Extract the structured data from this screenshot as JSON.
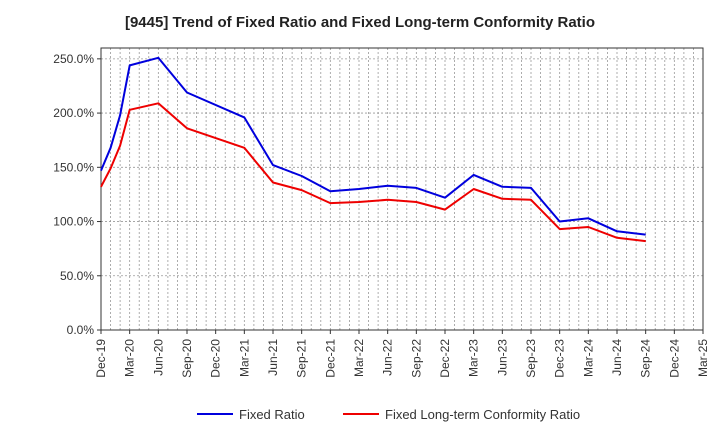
{
  "chart_data": {
    "type": "line",
    "title": "[9445]  Trend of Fixed Ratio and Fixed Long-term Conformity Ratio",
    "xlabel": "",
    "ylabel": "",
    "ylim": [
      0,
      260
    ],
    "y_ticks": [
      0,
      50,
      100,
      150,
      200,
      250
    ],
    "y_tick_labels": [
      "0.0%",
      "50.0%",
      "100.0%",
      "150.0%",
      "200.0%",
      "250.0%"
    ],
    "x_tick_labels": [
      "Dec-19",
      "Mar-20",
      "Jun-20",
      "Sep-20",
      "Dec-20",
      "Mar-21",
      "Jun-21",
      "Sep-21",
      "Dec-21",
      "Mar-22",
      "Jun-22",
      "Sep-22",
      "Dec-22",
      "Mar-23",
      "Jun-23",
      "Sep-23",
      "Dec-23",
      "Mar-24",
      "Jun-24",
      "Sep-24",
      "Dec-24",
      "Mar-25"
    ],
    "x_range": [
      0,
      63
    ],
    "grid": true,
    "legend_position": "bottom",
    "series": [
      {
        "name": "Fixed Ratio",
        "color": "#0000dd",
        "x": [
          0,
          1,
          2,
          3,
          6,
          9,
          15,
          18,
          21,
          24,
          27,
          30,
          33,
          36,
          39,
          42,
          45,
          48,
          51,
          54,
          57,
          60
        ],
        "values": [
          147,
          168,
          198,
          244,
          251,
          219,
          196,
          152,
          142,
          128,
          130,
          133,
          131,
          122,
          143,
          132,
          131,
          100,
          103,
          91,
          88,
          null
        ]
      },
      {
        "name": "Fixed Long-term Conformity Ratio",
        "color": "#ee0000",
        "x": [
          0,
          1,
          2,
          3,
          6,
          9,
          15,
          18,
          21,
          24,
          27,
          30,
          33,
          36,
          39,
          42,
          45,
          48,
          51,
          54,
          57,
          60
        ],
        "values": [
          132,
          149,
          170,
          203,
          209,
          186,
          168,
          136,
          129,
          117,
          118,
          120,
          118,
          111,
          130,
          121,
          120,
          93,
          95,
          85,
          82,
          null
        ]
      }
    ]
  }
}
